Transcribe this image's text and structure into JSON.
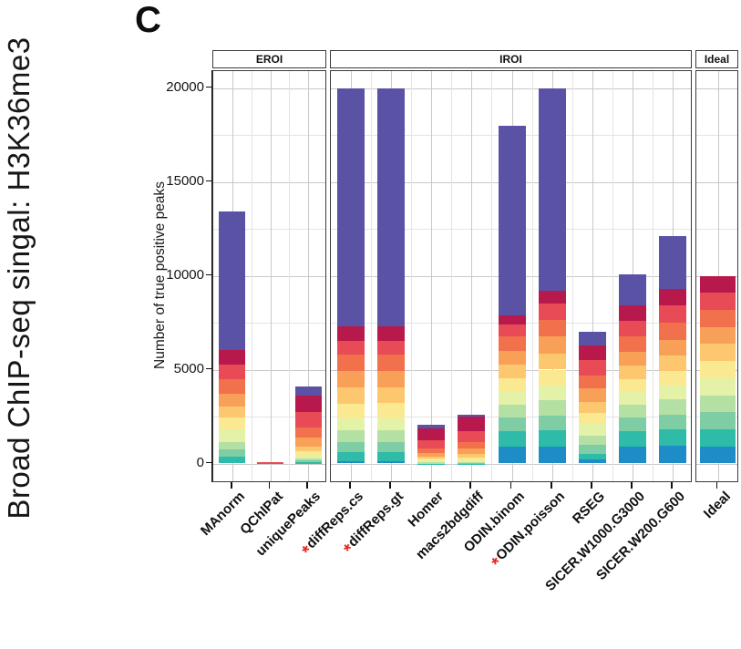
{
  "panel_letter": "C",
  "left_title": "Broad ChIP-seq singal: H3K36me3",
  "chart_data": {
    "type": "bar",
    "stacked": true,
    "title": "",
    "xlabel": "",
    "ylabel": "Number of true positive peaks",
    "ylim": [
      0,
      20000
    ],
    "yticks": [
      0,
      5000,
      10000,
      15000,
      20000
    ],
    "ytick_labels": [
      "0",
      "5000",
      "10000",
      "15000",
      "20000"
    ],
    "yminor": [
      2500,
      7500,
      12500,
      17500
    ],
    "grid": "on",
    "legend": "none",
    "flag_marker": "*",
    "flag_color": "#e8261f",
    "segment_color_names": [
      "blue",
      "teal",
      "green",
      "light-green",
      "pale-green",
      "pale-yellow",
      "light-orange",
      "orange",
      "dark-orange",
      "red",
      "crimson",
      "purple"
    ],
    "segment_colors": [
      "#1E8CC6",
      "#2EBBA8",
      "#7FCDA5",
      "#B5E0A3",
      "#E3F2A7",
      "#FAE990",
      "#FCC76F",
      "#F9A058",
      "#F1714C",
      "#E84B55",
      "#B7194C",
      "#5A52A5"
    ],
    "facets": [
      {
        "label": "EROI",
        "categories": [
          {
            "label": "MAnorm",
            "flagged": false,
            "total": 13400,
            "segments": [
              0,
              360,
              400,
              370,
              700,
              600,
              620,
              650,
              800,
              750,
              800,
              7350
            ]
          },
          {
            "label": "QChIPat",
            "flagged": false,
            "total": 80,
            "segments": [
              0,
              0,
              0,
              0,
              0,
              0,
              0,
              0,
              0,
              80,
              0,
              0
            ]
          },
          {
            "label": "uniquePeaks",
            "flagged": false,
            "total": 4100,
            "segments": [
              0,
              60,
              90,
              100,
              170,
              220,
              280,
              450,
              560,
              830,
              870,
              470
            ]
          }
        ]
      },
      {
        "label": "IROI",
        "categories": [
          {
            "label": "diffReps.cs",
            "flagged": true,
            "total": 20000,
            "segments": [
              100,
              500,
              550,
              600,
              650,
              800,
              850,
              900,
              850,
              750,
              750,
              12700
            ]
          },
          {
            "label": "diffReps.gt",
            "flagged": true,
            "total": 20000,
            "segments": [
              100,
              500,
              560,
              600,
              660,
              800,
              840,
              890,
              850,
              750,
              750,
              12700
            ]
          },
          {
            "label": "Homer",
            "flagged": false,
            "total": 2050,
            "segments": [
              0,
              20,
              30,
              40,
              60,
              100,
              120,
              180,
              250,
              450,
              620,
              180
            ]
          },
          {
            "label": "macs2bdgdiff",
            "flagged": false,
            "total": 2600,
            "segments": [
              0,
              20,
              30,
              50,
              80,
              150,
              200,
              280,
              350,
              540,
              850,
              50
            ]
          },
          {
            "label": "ODIN.binom",
            "flagged": false,
            "total": 18000,
            "segments": [
              900,
              800,
              750,
              700,
              700,
              700,
              700,
              750,
              750,
              650,
              500,
              10100
            ]
          },
          {
            "label": "ODIN.poisson",
            "flagged": true,
            "total": 20000,
            "segments": [
              900,
              850,
              800,
              800,
              800,
              850,
              850,
              900,
              900,
              850,
              700,
              10800
            ]
          },
          {
            "label": "RSEG",
            "flagged": false,
            "total": 7000,
            "segments": [
              200,
              300,
              500,
              500,
              600,
              600,
              600,
              700,
              700,
              800,
              800,
              700
            ]
          },
          {
            "label": "SICER.W1000.G3000",
            "flagged": false,
            "total": 10050,
            "segments": [
              900,
              800,
              750,
              700,
              650,
              700,
              700,
              750,
              800,
              850,
              800,
              1650
            ]
          },
          {
            "label": "SICER.W200.G600",
            "flagged": false,
            "total": 12100,
            "segments": [
              950,
              850,
              800,
              800,
              750,
              800,
              800,
              850,
              900,
              900,
              900,
              2800
            ]
          }
        ]
      },
      {
        "label": "Ideal",
        "categories": [
          {
            "label": "Ideal",
            "flagged": false,
            "total": 10000,
            "segments": [
              910,
              910,
              910,
              910,
              910,
              910,
              910,
              910,
              910,
              910,
              900,
              0
            ]
          }
        ]
      }
    ]
  }
}
